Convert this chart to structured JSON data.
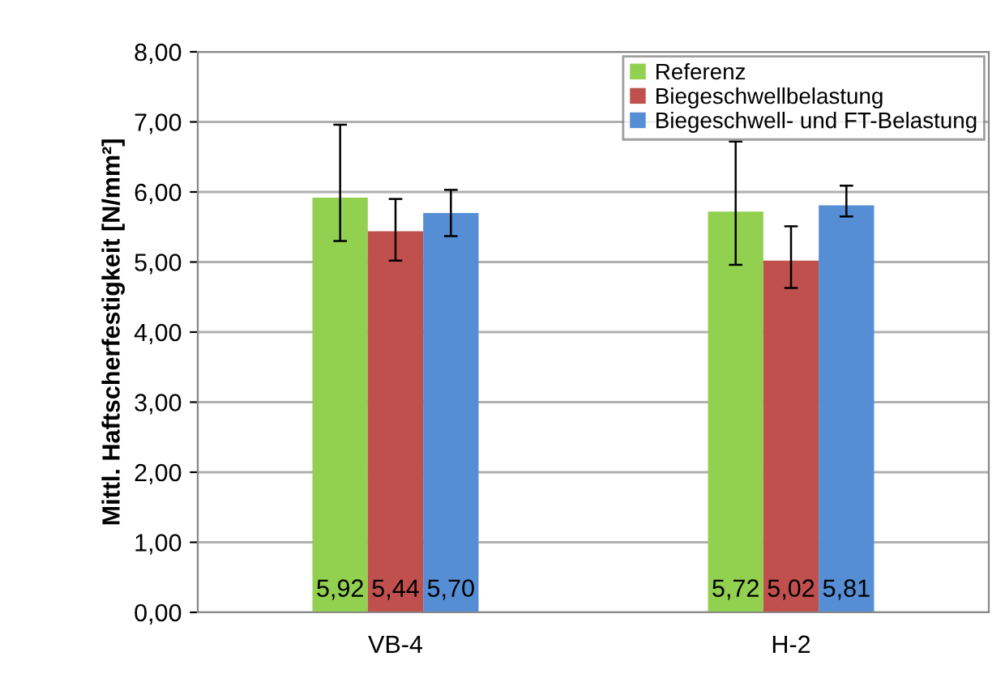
{
  "chart_data": {
    "type": "bar",
    "ylabel": "Mittl. Haftscherfestigkeit [N/mm²]",
    "categories": [
      "VB-4",
      "H-2"
    ],
    "series": [
      {
        "name": "Referenz",
        "color": "#92d050",
        "values": [
          5.92,
          5.72
        ],
        "errors": [
          [
            5.3,
            6.96
          ],
          [
            4.96,
            6.72
          ]
        ],
        "value_labels": [
          "5,92",
          "5,72"
        ]
      },
      {
        "name": "Biegeschwellbelastung",
        "color": "#c0504d",
        "values": [
          5.44,
          5.02
        ],
        "errors": [
          [
            5.02,
            5.9
          ],
          [
            4.63,
            5.51
          ]
        ],
        "value_labels": [
          "5,44",
          "5,02"
        ]
      },
      {
        "name": "Biegeschwell- und FT-Belastung",
        "color": "#558ed5",
        "values": [
          5.7,
          5.81
        ],
        "errors": [
          [
            5.37,
            6.03
          ],
          [
            5.65,
            6.09
          ]
        ],
        "value_labels": [
          "5,70",
          "5,81"
        ]
      }
    ],
    "ylim": [
      0,
      8
    ],
    "yticks": [
      {
        "value": 0,
        "label": "0,00"
      },
      {
        "value": 1,
        "label": "1,00"
      },
      {
        "value": 2,
        "label": "2,00"
      },
      {
        "value": 3,
        "label": "3,00"
      },
      {
        "value": 4,
        "label": "4,00"
      },
      {
        "value": 5,
        "label": "5,00"
      },
      {
        "value": 6,
        "label": "6,00"
      },
      {
        "value": 7,
        "label": "7,00"
      },
      {
        "value": 8,
        "label": "8,00"
      }
    ],
    "grid": "y",
    "legend": "top right"
  }
}
